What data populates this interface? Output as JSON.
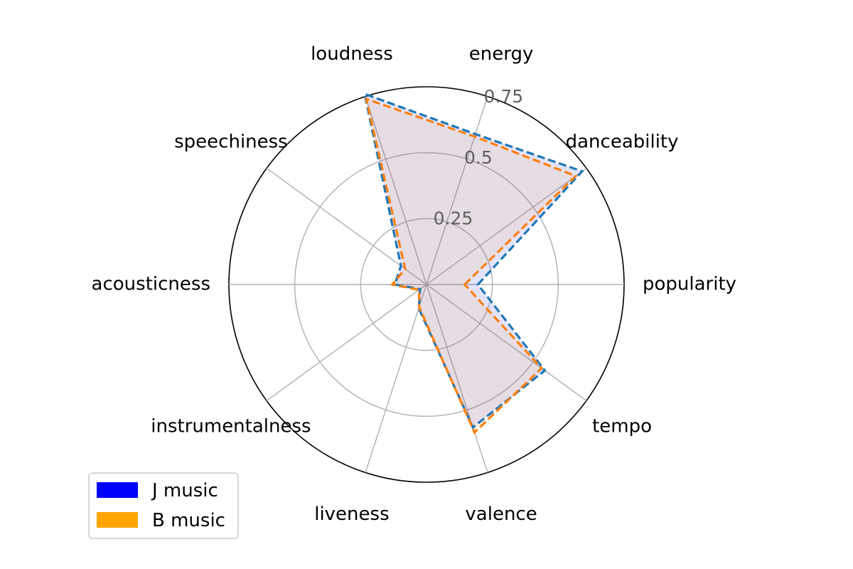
{
  "chart_data": {
    "type": "radar",
    "categories": [
      "popularity",
      "danceability",
      "energy",
      "loudness",
      "speechiness",
      "acousticness",
      "instrumentalness",
      "liveness",
      "valence",
      "tempo"
    ],
    "series": [
      {
        "name": "J music",
        "values": [
          0.195,
          0.73,
          0.6,
          0.76,
          0.12,
          0.12,
          0.03,
          0.095,
          0.57,
          0.555
        ],
        "line_color": "#1f77b4",
        "fill_color": "#0000ff",
        "legend_color": "#0000ff"
      },
      {
        "name": "B music",
        "values": [
          0.145,
          0.7,
          0.59,
          0.74,
          0.1,
          0.13,
          0.035,
          0.09,
          0.59,
          0.54
        ],
        "line_color": "#ff7f0e",
        "fill_color": "#ffa500",
        "legend_color": "#ffa500"
      }
    ],
    "radial_ticks": [
      0.25,
      0.5,
      0.75
    ],
    "radial_tick_labels": [
      "0.25",
      "0.5",
      "0.75"
    ],
    "rlim": [
      0,
      0.75
    ],
    "grid": true,
    "line_style": "dashed",
    "legend": {
      "position": "lower-left"
    },
    "title": "",
    "xlabel": "",
    "ylabel": ""
  }
}
